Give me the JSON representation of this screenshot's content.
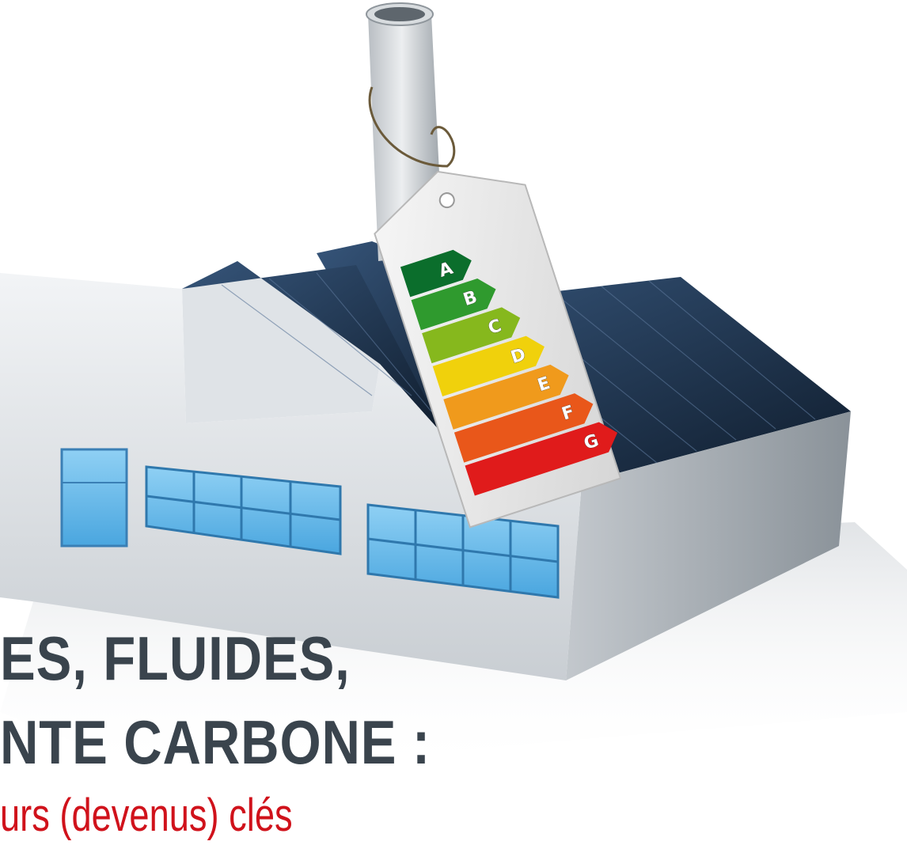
{
  "headline": {
    "line1": "ES, FLUIDES,",
    "line2": "NTE CARBONE :",
    "subtitle": "urs (devenus) clés"
  },
  "energy_label": {
    "grades": [
      {
        "letter": "A",
        "color": "#0b6e2c"
      },
      {
        "letter": "B",
        "color": "#2f9a2e"
      },
      {
        "letter": "C",
        "color": "#86b81d"
      },
      {
        "letter": "D",
        "color": "#f0d10c"
      },
      {
        "letter": "E",
        "color": "#f09a1c"
      },
      {
        "letter": "F",
        "color": "#e9571a"
      },
      {
        "letter": "G",
        "color": "#e01b1b"
      }
    ]
  },
  "colors": {
    "headline": "#3a444d",
    "subtitle": "#d0121b",
    "roof": "#1e3148",
    "wall": "#e6e9ec",
    "window": "#62b6ea"
  }
}
